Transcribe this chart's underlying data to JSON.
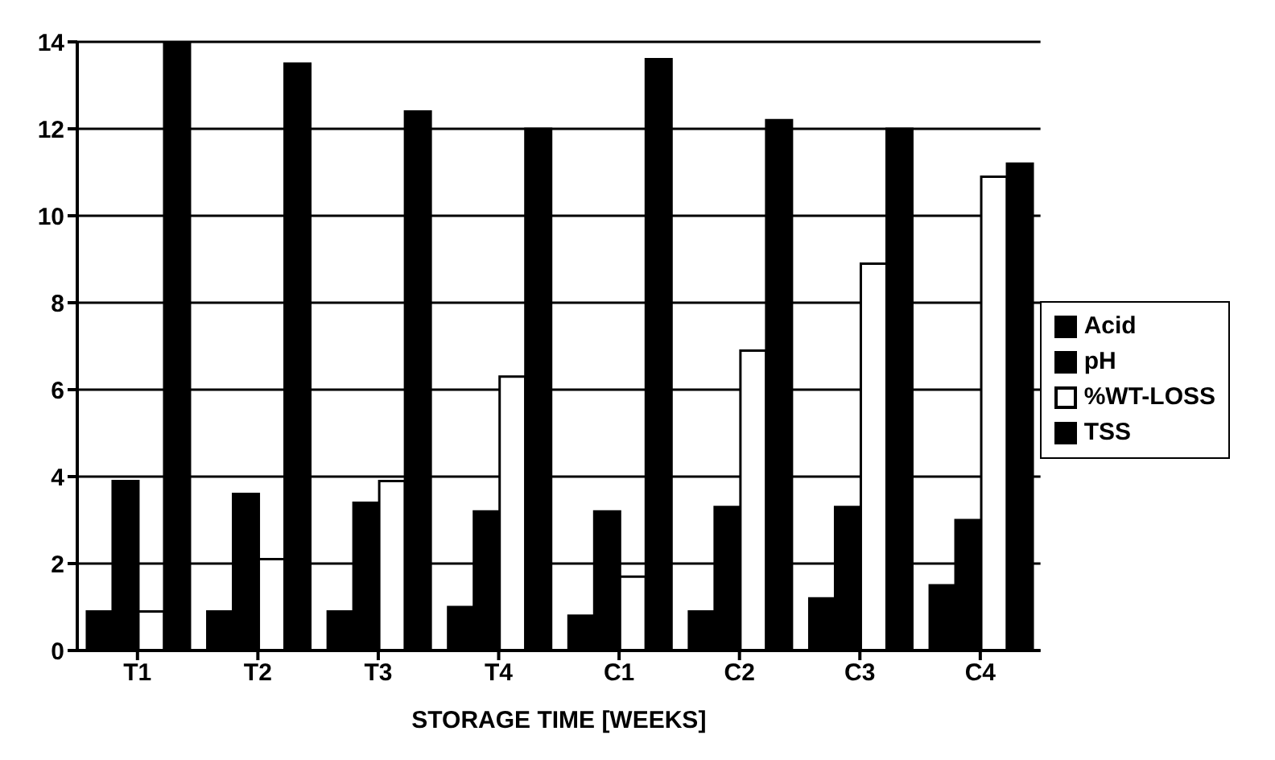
{
  "chart_data": {
    "type": "bar",
    "xlabel": "STORAGE TIME [WEEKS]",
    "categories": [
      "T1",
      "T2",
      "T3",
      "T4",
      "C1",
      "C2",
      "C3",
      "C4"
    ],
    "series": [
      {
        "name": "Acid",
        "color": "#000000",
        "values": [
          0.9,
          0.9,
          0.9,
          1.0,
          0.8,
          0.9,
          1.2,
          1.5
        ]
      },
      {
        "name": "pH",
        "color": "#000000",
        "values": [
          3.9,
          3.6,
          3.4,
          3.2,
          3.2,
          3.3,
          3.3,
          3.0
        ]
      },
      {
        "name": "%WT-LOSS",
        "color": "#ffffff",
        "values": [
          0.9,
          2.1,
          3.9,
          6.3,
          1.7,
          6.9,
          8.9,
          10.9
        ]
      },
      {
        "name": "TSS",
        "color": "#000000",
        "values": [
          14,
          13.5,
          12.4,
          12.0,
          13.6,
          12.2,
          12.0,
          11.2
        ]
      }
    ],
    "ylim": [
      0,
      14
    ],
    "yticks": [
      0,
      2,
      4,
      6,
      8,
      10,
      12,
      14
    ],
    "grid": "y",
    "legend": "right"
  }
}
